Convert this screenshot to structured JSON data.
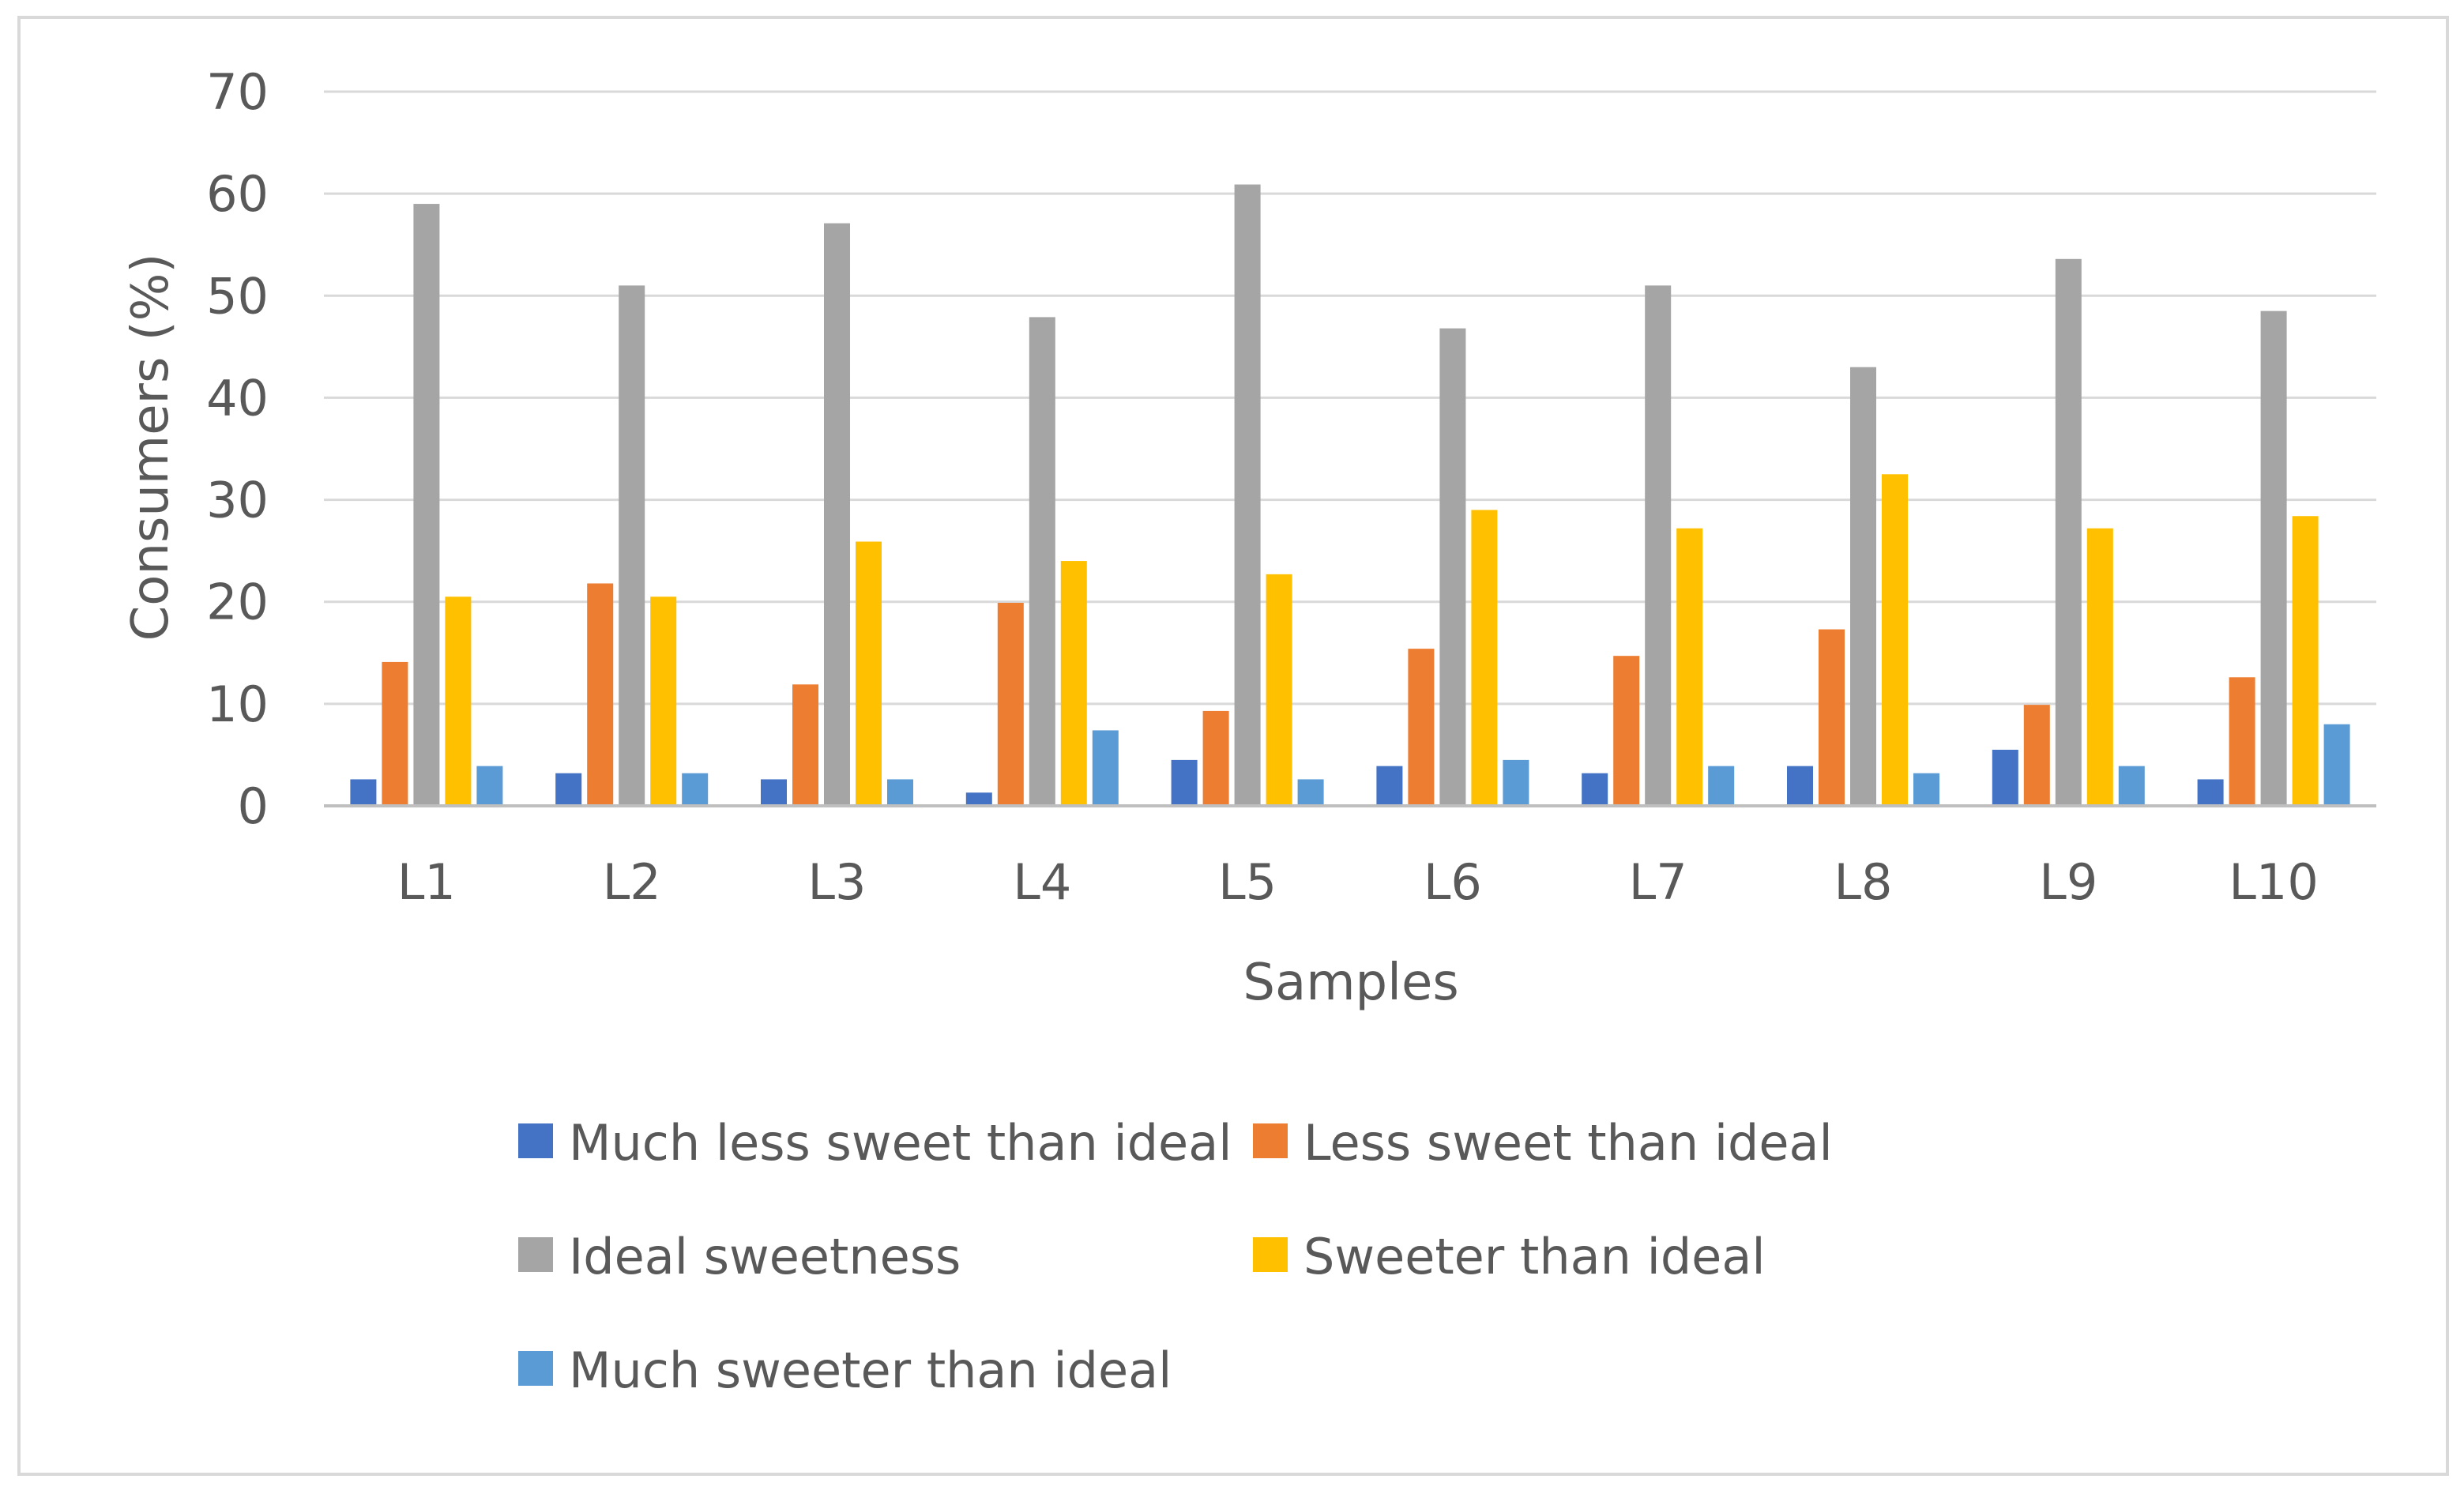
{
  "chart_data": {
    "type": "bar",
    "title": "",
    "xlabel": "Samples",
    "ylabel": "Consumers (%)",
    "ylim": [
      0,
      70
    ],
    "yticks": [
      0,
      10,
      20,
      30,
      40,
      50,
      60,
      70
    ],
    "grid": true,
    "legend_position": "bottom",
    "categories": [
      "L1",
      "L2",
      "L3",
      "L4",
      "L5",
      "L6",
      "L7",
      "L8",
      "L9",
      "L10"
    ],
    "series": [
      {
        "name": "Much less sweet than ideal",
        "color": "#4472C4",
        "values": [
          2.6,
          3.2,
          2.6,
          1.3,
          4.5,
          3.9,
          3.2,
          3.9,
          5.5,
          2.6
        ]
      },
      {
        "name": "Less sweet than ideal",
        "color": "#ED7D31",
        "values": [
          14.1,
          21.8,
          11.9,
          19.9,
          9.3,
          15.4,
          14.7,
          17.3,
          9.9,
          12.6
        ]
      },
      {
        "name": "Ideal sweetness",
        "color": "#A5A5A5",
        "values": [
          59.0,
          51.0,
          57.1,
          47.9,
          60.9,
          46.8,
          51.0,
          43.0,
          53.6,
          48.5
        ]
      },
      {
        "name": "Sweeter than ideal",
        "color": "#FFC000",
        "values": [
          20.5,
          20.5,
          25.9,
          24.0,
          22.7,
          29.0,
          27.2,
          32.5,
          27.2,
          28.4
        ]
      },
      {
        "name": "Much sweeter than ideal",
        "color": "#5B9BD5",
        "values": [
          3.9,
          3.2,
          2.6,
          7.4,
          2.6,
          4.5,
          3.9,
          3.2,
          3.9,
          8.0
        ]
      }
    ]
  }
}
